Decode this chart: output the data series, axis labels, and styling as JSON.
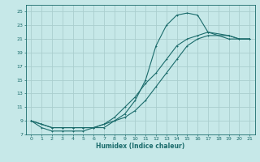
{
  "title": "",
  "xlabel": "Humidex (Indice chaleur)",
  "ylabel": "",
  "bg_color": "#c6e8e8",
  "grid_color": "#aacece",
  "line_color": "#1a6b6b",
  "xlim": [
    -0.5,
    21.5
  ],
  "ylim": [
    7,
    26
  ],
  "xticks": [
    0,
    1,
    2,
    3,
    4,
    5,
    6,
    7,
    8,
    9,
    10,
    11,
    12,
    13,
    14,
    15,
    16,
    17,
    18,
    19,
    20,
    21
  ],
  "yticks": [
    7,
    9,
    11,
    13,
    15,
    17,
    19,
    21,
    23,
    25
  ],
  "curve1_x": [
    0,
    1,
    2,
    3,
    4,
    5,
    6,
    7,
    8,
    9,
    10,
    11,
    12,
    13,
    14,
    15,
    16,
    17,
    19,
    20,
    21
  ],
  "curve1_y": [
    9,
    8,
    7.5,
    7.5,
    7.5,
    7.5,
    8,
    8,
    9,
    10,
    12,
    15,
    20,
    23,
    24.5,
    24.8,
    24.5,
    22,
    21,
    21,
    21
  ],
  "curve2_x": [
    0,
    1,
    2,
    3,
    4,
    5,
    6,
    7,
    8,
    9,
    10,
    11,
    12,
    13,
    14,
    15,
    16,
    17,
    19,
    20,
    21
  ],
  "curve2_y": [
    9,
    8.5,
    8,
    8,
    8,
    8,
    8,
    8.5,
    9.5,
    11,
    12.5,
    14.5,
    16,
    18,
    20,
    21,
    21.5,
    22,
    21.5,
    21,
    21
  ],
  "curve3_x": [
    0,
    1,
    2,
    3,
    4,
    5,
    6,
    7,
    8,
    9,
    10,
    11,
    12,
    13,
    14,
    15,
    16,
    17,
    19,
    20,
    21
  ],
  "curve3_y": [
    9,
    8.5,
    8,
    8,
    8,
    8,
    8,
    8.5,
    9,
    9.5,
    10.5,
    12,
    14,
    16,
    18,
    20,
    21,
    21.5,
    21.5,
    21,
    21
  ]
}
